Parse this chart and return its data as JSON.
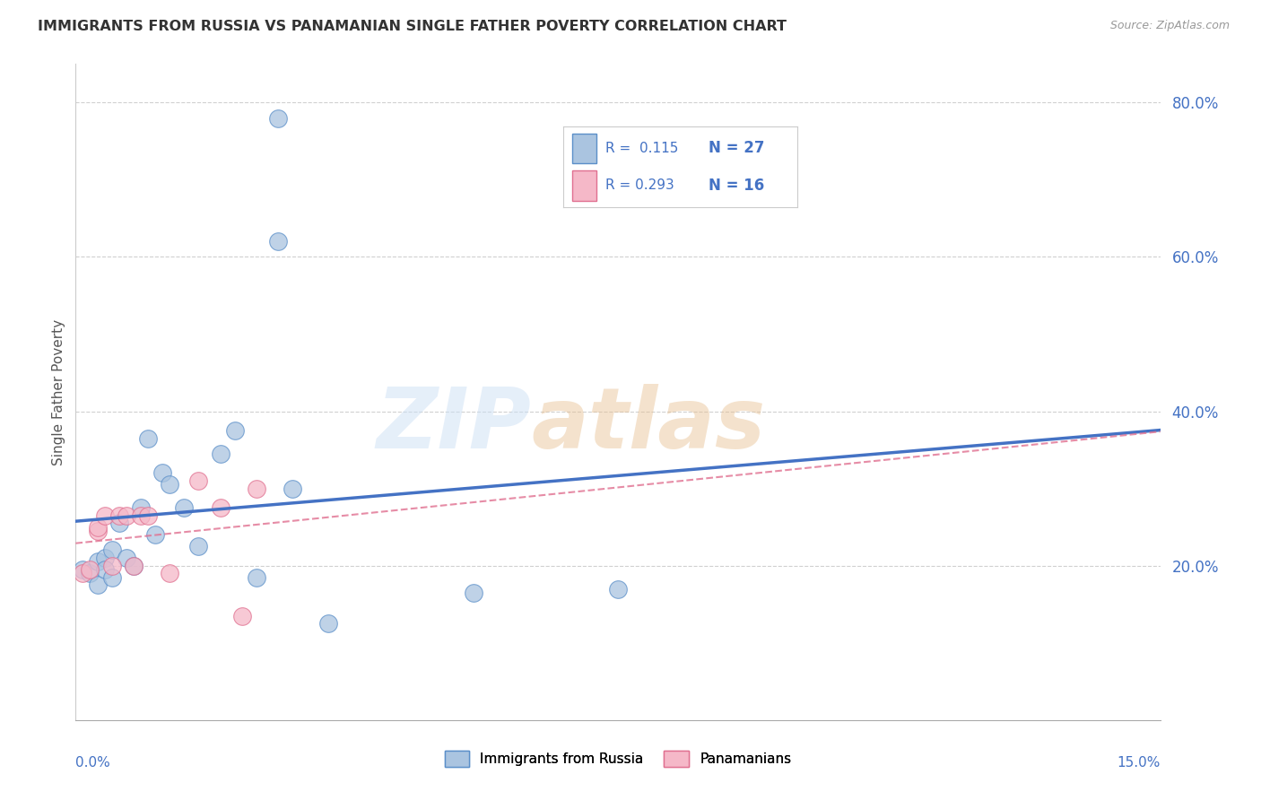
{
  "title": "IMMIGRANTS FROM RUSSIA VS PANAMANIAN SINGLE FATHER POVERTY CORRELATION CHART",
  "source": "Source: ZipAtlas.com",
  "xlabel_bottom_left": "0.0%",
  "xlabel_bottom_right": "15.0%",
  "ylabel": "Single Father Poverty",
  "xmin": 0.0,
  "xmax": 0.15,
  "ymin": 0.0,
  "ymax": 0.85,
  "yticks": [
    0.2,
    0.4,
    0.6,
    0.8
  ],
  "ytick_labels": [
    "20.0%",
    "40.0%",
    "60.0%",
    "80.0%"
  ],
  "legend_R1": "R =  0.115",
  "legend_N1": "N = 27",
  "legend_R2": "R = 0.293",
  "legend_N2": "N = 16",
  "label_blue": "Immigrants from Russia",
  "label_pink": "Panamanians",
  "color_blue": "#aac4e0",
  "color_blue_dark": "#5b8fc9",
  "color_blue_line": "#4472c4",
  "color_pink": "#f5b8c8",
  "color_pink_dark": "#e07090",
  "color_pink_line": "#e07090",
  "color_text_blue": "#4472c4",
  "watermark_zip": "ZIP",
  "watermark_atlas": "atlas",
  "grid_color": "#d0d0d0",
  "background_color": "#ffffff",
  "blue_x": [
    0.001,
    0.002,
    0.003,
    0.003,
    0.004,
    0.004,
    0.005,
    0.005,
    0.006,
    0.007,
    0.008,
    0.009,
    0.01,
    0.011,
    0.012,
    0.013,
    0.015,
    0.017,
    0.02,
    0.022,
    0.025,
    0.03,
    0.035,
    0.055,
    0.075,
    0.028,
    0.028
  ],
  "blue_y": [
    0.195,
    0.19,
    0.205,
    0.175,
    0.21,
    0.195,
    0.22,
    0.185,
    0.255,
    0.21,
    0.2,
    0.275,
    0.365,
    0.24,
    0.32,
    0.305,
    0.275,
    0.225,
    0.345,
    0.375,
    0.185,
    0.3,
    0.125,
    0.165,
    0.17,
    0.78,
    0.62
  ],
  "pink_x": [
    0.001,
    0.002,
    0.003,
    0.003,
    0.004,
    0.005,
    0.006,
    0.007,
    0.008,
    0.009,
    0.01,
    0.013,
    0.017,
    0.02,
    0.023,
    0.025
  ],
  "pink_y": [
    0.19,
    0.195,
    0.245,
    0.25,
    0.265,
    0.2,
    0.265,
    0.265,
    0.2,
    0.265,
    0.265,
    0.19,
    0.31,
    0.275,
    0.135,
    0.3
  ]
}
